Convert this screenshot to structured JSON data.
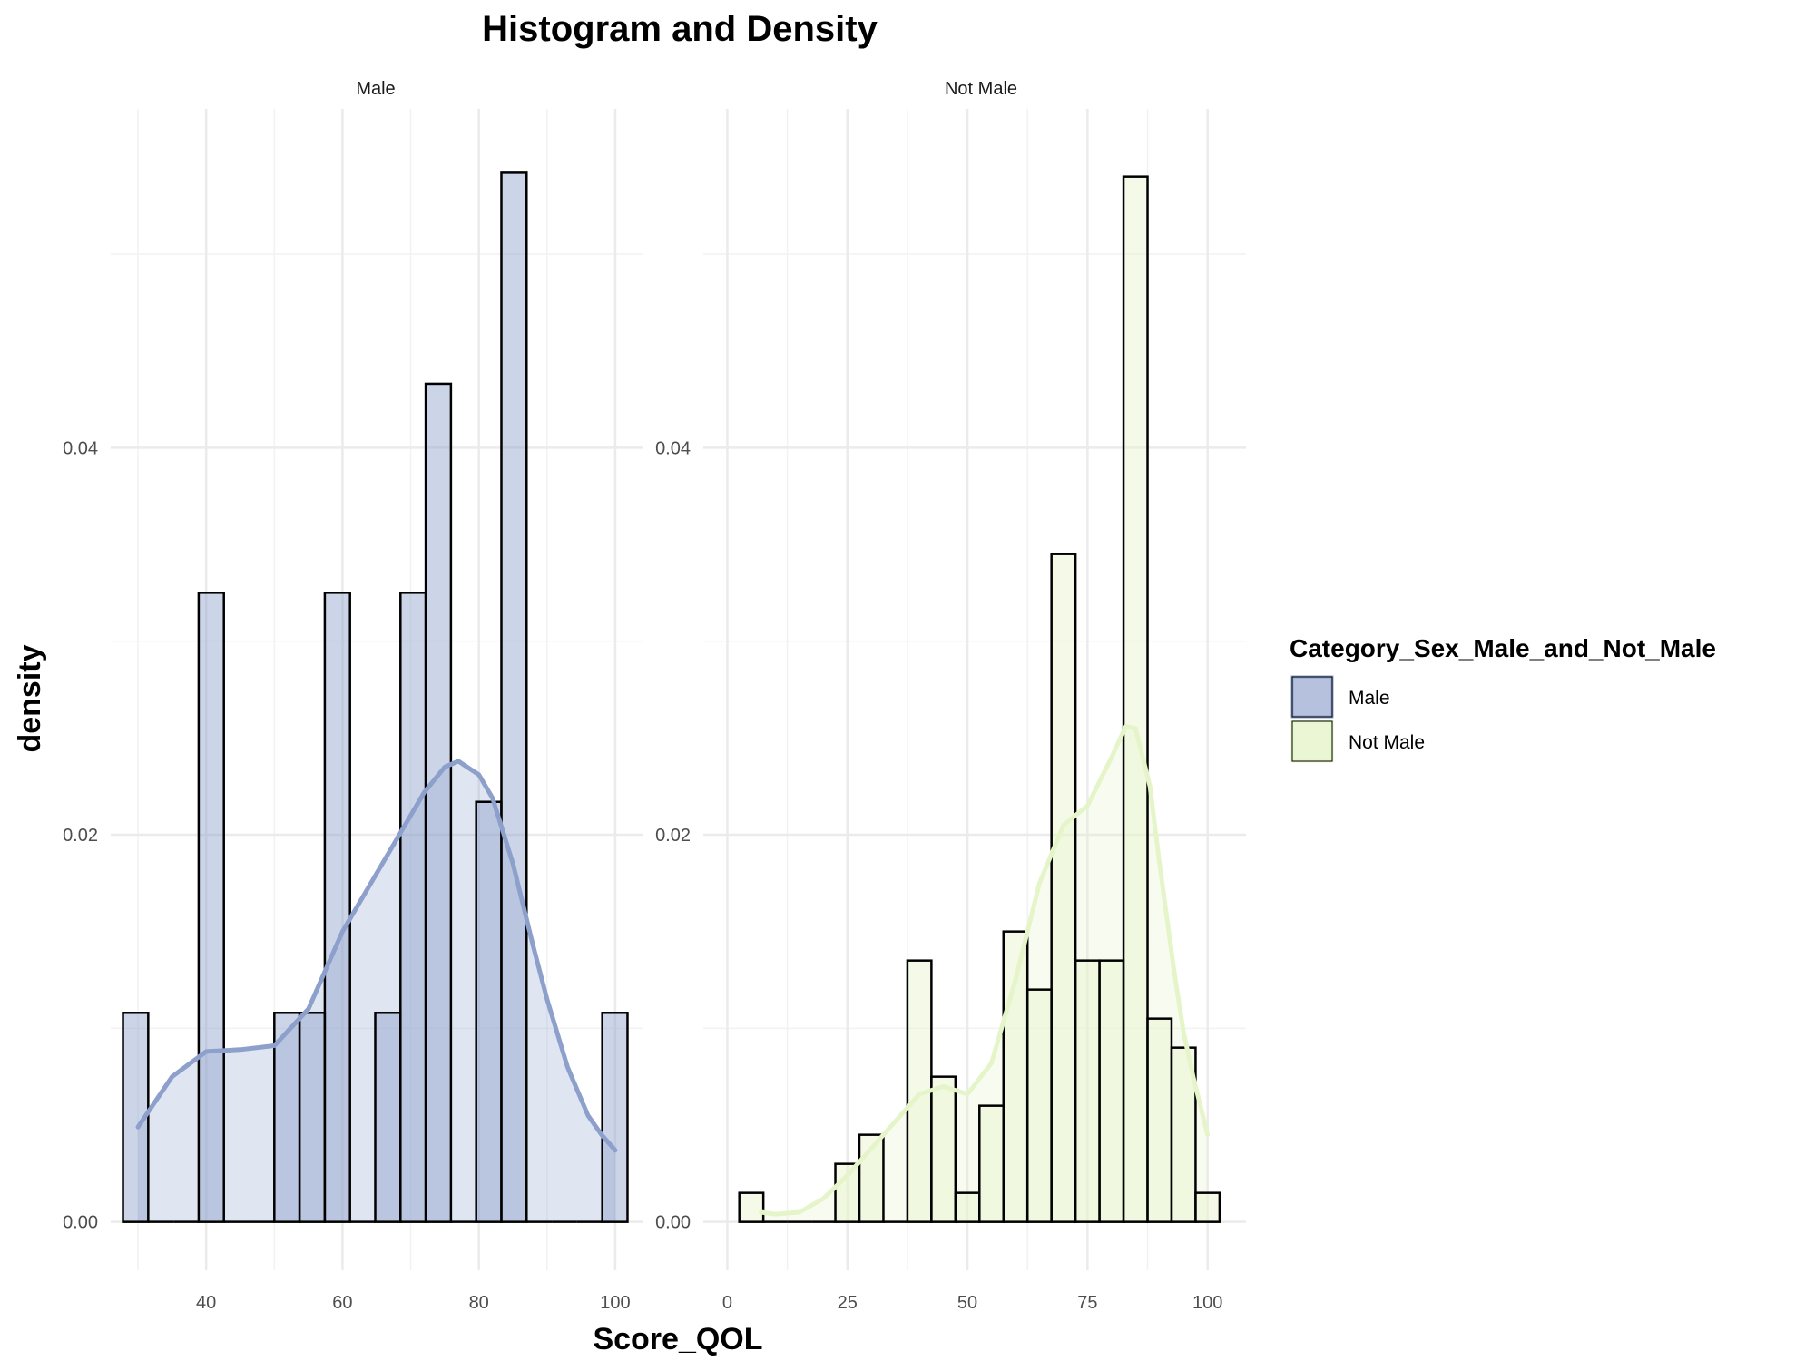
{
  "chart_data": {
    "type": "histogram",
    "title": "Histogram and Density",
    "xlabel": "Score_QOL",
    "ylabel": "density",
    "grid": true,
    "legend": {
      "title": "Category_Sex_Male_and_Not_Male",
      "placement": "right",
      "items": [
        {
          "label": "Male",
          "fill": "#8da0cb"
        },
        {
          "label": "Not Male",
          "fill": "#e6f5c9"
        }
      ]
    },
    "panels": [
      {
        "strip": "Male",
        "color": "#8da0cb",
        "xlim": [
          26,
          104
        ],
        "ylim": [
          -0.0025,
          0.0575
        ],
        "xticks": [
          40,
          60,
          80,
          100
        ],
        "yticks": [
          0.0,
          0.02,
          0.04
        ],
        "ytick_labels": [
          "0.00",
          "0.02",
          "0.04"
        ],
        "bin_width": 3.7,
        "bins": [
          {
            "start": 27.8,
            "value": 0.0108
          },
          {
            "start": 31.5,
            "value": 0.0
          },
          {
            "start": 35.2,
            "value": 0.0
          },
          {
            "start": 38.9,
            "value": 0.0325
          },
          {
            "start": 42.6,
            "value": 0.0
          },
          {
            "start": 46.3,
            "value": 0.0
          },
          {
            "start": 50.0,
            "value": 0.0108
          },
          {
            "start": 53.7,
            "value": 0.0108
          },
          {
            "start": 57.4,
            "value": 0.0325
          },
          {
            "start": 61.1,
            "value": 0.0
          },
          {
            "start": 64.8,
            "value": 0.0108
          },
          {
            "start": 68.5,
            "value": 0.0325
          },
          {
            "start": 72.2,
            "value": 0.0433
          },
          {
            "start": 75.9,
            "value": 0.0
          },
          {
            "start": 79.6,
            "value": 0.0217
          },
          {
            "start": 83.3,
            "value": 0.0542
          },
          {
            "start": 87.0,
            "value": 0.0
          },
          {
            "start": 90.7,
            "value": 0.0
          },
          {
            "start": 94.4,
            "value": 0.0
          },
          {
            "start": 98.1,
            "value": 0.0108
          }
        ],
        "density": {
          "x": [
            30,
            35,
            40,
            45,
            50,
            55,
            60,
            65,
            70,
            72,
            75,
            77,
            80,
            82,
            85,
            88,
            90,
            93,
            96,
            98,
            100
          ],
          "y": [
            0.0049,
            0.0075,
            0.0088,
            0.0089,
            0.0091,
            0.011,
            0.015,
            0.018,
            0.021,
            0.0222,
            0.0235,
            0.0238,
            0.0231,
            0.0219,
            0.0185,
            0.0142,
            0.0115,
            0.008,
            0.0055,
            0.0045,
            0.0037
          ]
        }
      },
      {
        "strip": "Not Male",
        "color": "#e6f5c9",
        "xlim": [
          -5,
          108
        ],
        "ylim": [
          -0.0025,
          0.0575
        ],
        "xticks": [
          0,
          25,
          50,
          75,
          100
        ],
        "yticks": [
          0.0,
          0.02,
          0.04
        ],
        "ytick_labels": [
          "0.00",
          "0.02",
          "0.04"
        ],
        "bin_width": 5,
        "bins": [
          {
            "start": 2.5,
            "value": 0.0015
          },
          {
            "start": 7.5,
            "value": 0.0
          },
          {
            "start": 12.5,
            "value": 0.0
          },
          {
            "start": 17.5,
            "value": 0.0
          },
          {
            "start": 22.5,
            "value": 0.003
          },
          {
            "start": 27.5,
            "value": 0.0045
          },
          {
            "start": 32.5,
            "value": 0.0
          },
          {
            "start": 37.5,
            "value": 0.0135
          },
          {
            "start": 42.5,
            "value": 0.0075
          },
          {
            "start": 47.5,
            "value": 0.0015
          },
          {
            "start": 52.5,
            "value": 0.006
          },
          {
            "start": 57.5,
            "value": 0.015
          },
          {
            "start": 62.5,
            "value": 0.012
          },
          {
            "start": 67.5,
            "value": 0.0345
          },
          {
            "start": 72.5,
            "value": 0.0135
          },
          {
            "start": 77.5,
            "value": 0.0135
          },
          {
            "start": 82.5,
            "value": 0.054
          },
          {
            "start": 87.5,
            "value": 0.0105
          },
          {
            "start": 92.5,
            "value": 0.009
          },
          {
            "start": 97.5,
            "value": 0.0015
          }
        ],
        "density": {
          "x": [
            7,
            10,
            15,
            20,
            25,
            30,
            35,
            40,
            45,
            50,
            55,
            60,
            65,
            70,
            75,
            80,
            83,
            85,
            88,
            90,
            93,
            95,
            97,
            100
          ],
          "y": [
            0.0005,
            0.0004,
            0.0005,
            0.0012,
            0.0024,
            0.0038,
            0.0052,
            0.0066,
            0.007,
            0.0066,
            0.0082,
            0.0125,
            0.0175,
            0.0205,
            0.0215,
            0.024,
            0.0256,
            0.0255,
            0.0225,
            0.0185,
            0.013,
            0.0098,
            0.0075,
            0.0045
          ]
        }
      }
    ]
  }
}
